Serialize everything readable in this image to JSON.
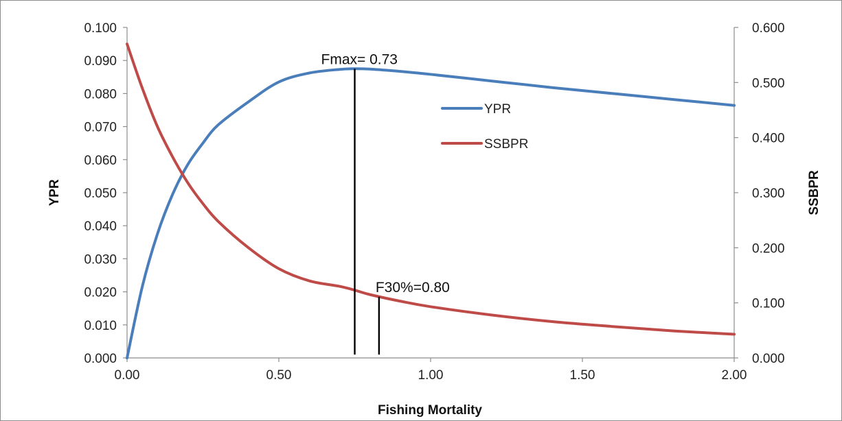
{
  "chart_data": {
    "type": "line",
    "xlabel": "Fishing Mortality",
    "ylabel_left": "YPR",
    "ylabel_right": "SSBPR",
    "xlim": [
      0,
      2
    ],
    "ylim_left": [
      0,
      0.1
    ],
    "ylim_right": [
      0,
      0.6
    ],
    "x_ticks": [
      "0.00",
      "0.50",
      "1.00",
      "1.50",
      "2.00"
    ],
    "y_left_ticks": [
      "0.000",
      "0.010",
      "0.020",
      "0.030",
      "0.040",
      "0.050",
      "0.060",
      "0.070",
      "0.080",
      "0.090",
      "0.100"
    ],
    "y_right_ticks": [
      "0.000",
      "0.100",
      "0.200",
      "0.300",
      "0.400",
      "0.500",
      "0.600"
    ],
    "grid": false,
    "legend_position": "top-right (inside plot)",
    "series": [
      {
        "name": "YPR",
        "axis": "left",
        "color": "#4a7ebb",
        "x": [
          0,
          0.05,
          0.1,
          0.15,
          0.2,
          0.25,
          0.3,
          0.4,
          0.5,
          0.6,
          0.7,
          0.75,
          0.8,
          0.9,
          1.0,
          1.2,
          1.4,
          1.6,
          1.8,
          2.0
        ],
        "y": [
          0.0,
          0.0215,
          0.0375,
          0.0495,
          0.0585,
          0.065,
          0.0705,
          0.0775,
          0.0835,
          0.0862,
          0.0873,
          0.0875,
          0.0874,
          0.0867,
          0.0858,
          0.0838,
          0.0818,
          0.08,
          0.0782,
          0.0764
        ]
      },
      {
        "name": "SSBPR",
        "axis": "right",
        "color": "#be4b48",
        "x": [
          0,
          0.05,
          0.1,
          0.15,
          0.2,
          0.25,
          0.3,
          0.4,
          0.5,
          0.6,
          0.7,
          0.75,
          0.8,
          0.9,
          1.0,
          1.2,
          1.4,
          1.6,
          1.8,
          2.0
        ],
        "y": [
          0.57,
          0.49,
          0.42,
          0.365,
          0.318,
          0.28,
          0.248,
          0.2,
          0.162,
          0.14,
          0.13,
          0.123,
          0.115,
          0.103,
          0.093,
          0.078,
          0.066,
          0.057,
          0.049,
          0.043
        ]
      }
    ],
    "annotations": [
      {
        "label": "Fmax= 0.73",
        "x": 0.75,
        "y_top_left": 0.0875,
        "y_bottom_left": 0.001
      },
      {
        "label": "F30%=0.80",
        "x": 0.83,
        "y_top_left": 0.0185,
        "y_bottom_left": 0.001
      }
    ]
  }
}
